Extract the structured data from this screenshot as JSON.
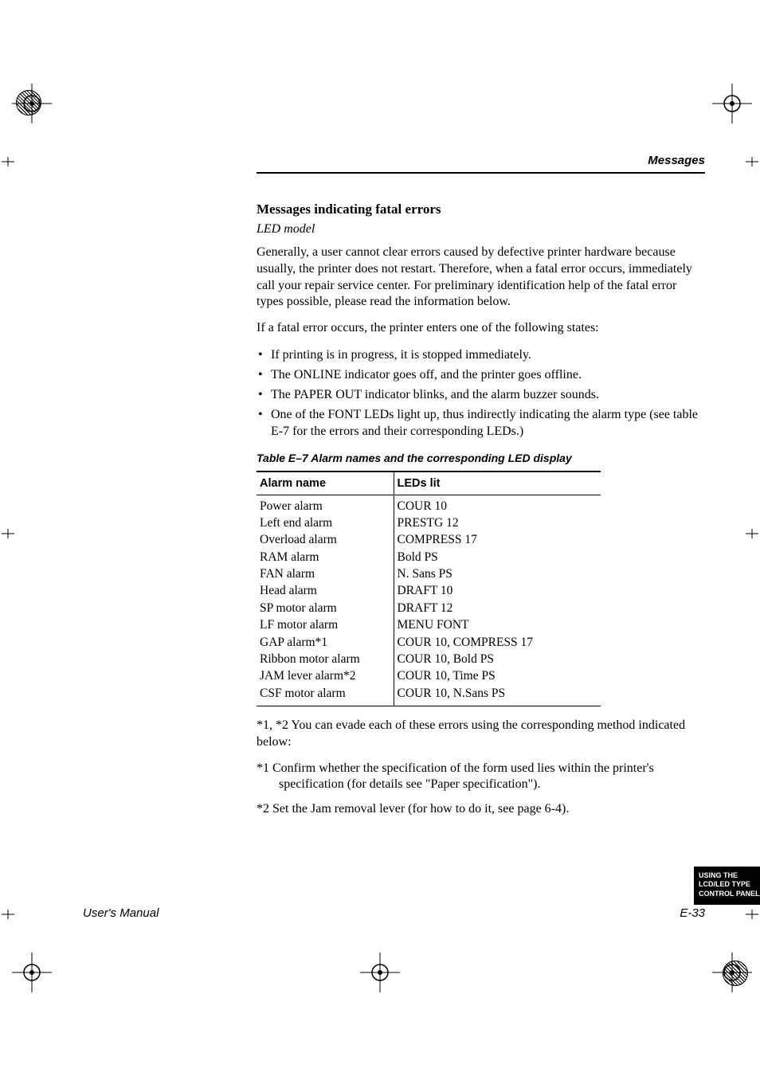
{
  "colors": {
    "text": "#000000",
    "bg": "#ffffff",
    "tab_bg": "#000000",
    "tab_text": "#ffffff"
  },
  "header": {
    "label": "Messages"
  },
  "section": {
    "title": "Messages indicating fatal errors",
    "subtitle": "LED model",
    "para1": "Generally, a user cannot clear errors caused by defective printer hardware because usually, the printer does not restart. Therefore, when a fatal error occurs, immediately call your repair service center. For preliminary identification help of the fatal error types possible, please read the information below.",
    "para2": "If a fatal error occurs, the printer enters one of the following states:",
    "bullets": [
      "If printing is in progress, it is stopped immediately.",
      "The ONLINE indicator goes off, and the printer goes offline.",
      "The PAPER OUT indicator blinks, and the alarm buzzer sounds.",
      "One of the FONT LEDs light up, thus indirectly indicating the alarm type (see table E-7 for the errors and their corresponding LEDs.)"
    ]
  },
  "table": {
    "caption": "Table E–7    Alarm names and the corresponding LED display",
    "headers": [
      "Alarm name",
      "LEDs lit"
    ],
    "rows": [
      [
        "Power alarm",
        "COUR 10"
      ],
      [
        "Left end alarm",
        "PRESTG 12"
      ],
      [
        "Overload alarm",
        "COMPRESS 17"
      ],
      [
        "RAM alarm",
        "Bold PS"
      ],
      [
        "FAN alarm",
        "N. Sans PS"
      ],
      [
        "Head alarm",
        "DRAFT 10"
      ],
      [
        "SP motor alarm",
        "DRAFT 12"
      ],
      [
        "LF motor alarm",
        "MENU FONT"
      ],
      [
        "GAP alarm*1",
        "COUR 10,  COMPRESS 17"
      ],
      [
        "Ribbon motor alarm",
        "COUR 10,  Bold PS"
      ],
      [
        "JAM lever alarm*2",
        "COUR 10,  Time PS"
      ],
      [
        "CSF motor alarm",
        "COUR 10,  N.Sans PS"
      ]
    ]
  },
  "footnotes": {
    "intro": "*1, *2 You can evade each of these errors using the corresponding method indicated below:",
    "items": [
      "*1  Confirm whether the specification of the form used lies within the printer's specification (for details see \"Paper specification\").",
      "*2  Set the Jam removal lever (for how to do it, see page 6-4)."
    ]
  },
  "side_tab": {
    "line1": "USING THE",
    "line2": "LCD/LED TYPE",
    "line3": "CONTROL PANEL"
  },
  "footer": {
    "left": "User's Manual",
    "right": "E-33"
  }
}
